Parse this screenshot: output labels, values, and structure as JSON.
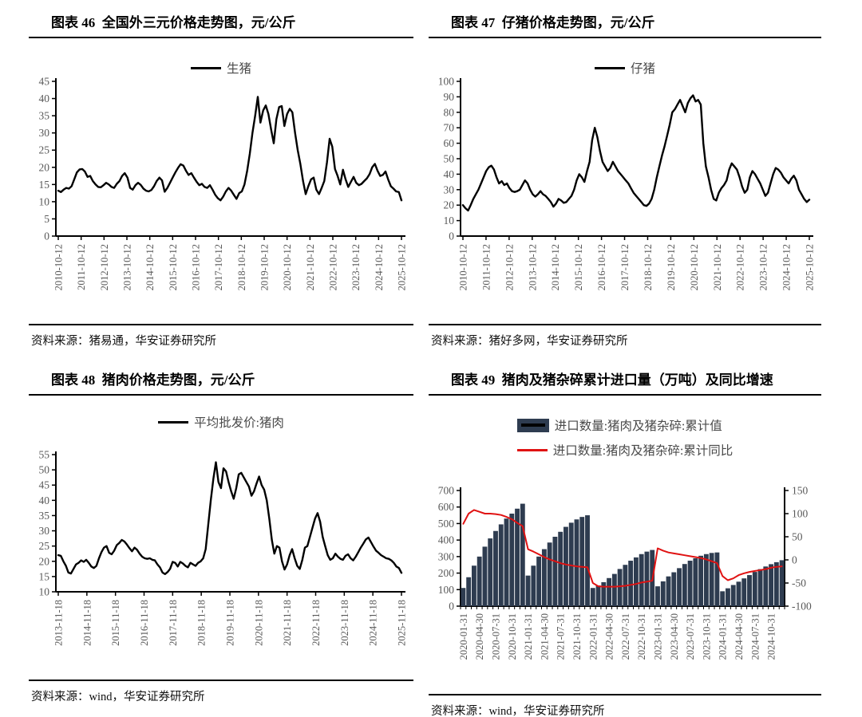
{
  "chart_data": [
    {
      "id": "fig46",
      "type": "line",
      "title": "图表 46  全国外三元价格走势图，元/公斤",
      "source": "资料来源：猪易通，华安证券研究所",
      "ylim": [
        0,
        45
      ],
      "ytick_step": 5,
      "axis_label_color": "#595959",
      "x_tick_labels": [
        "2010-10-12",
        "2011-10-12",
        "2012-10-12",
        "2013-10-12",
        "2014-10-12",
        "2015-10-12",
        "2016-10-12",
        "2017-10-12",
        "2018-10-12",
        "2019-10-12",
        "2020-10-12",
        "2021-10-12",
        "2022-10-12",
        "2023-10-12",
        "2024-10-12",
        "2025-10-12"
      ],
      "legend_items": [
        {
          "label": "生猪",
          "type": "line",
          "color": "#000000"
        }
      ],
      "series": [
        {
          "name": "生猪",
          "color": "#000000",
          "values": [
            13.2,
            12.8,
            13.5,
            14,
            13.8,
            14.5,
            16.5,
            18.5,
            19.4,
            19.5,
            18.8,
            17.2,
            17.5,
            16,
            15,
            14.3,
            14.2,
            14.8,
            15.5,
            15,
            14.3,
            14,
            15.2,
            16,
            17.5,
            18.3,
            17,
            14,
            13.5,
            14.8,
            15.5,
            14.9,
            13.8,
            13.2,
            13,
            13.4,
            14.5,
            16,
            17,
            16.2,
            12.9,
            14,
            15.5,
            17,
            18.5,
            19.8,
            20.9,
            20.5,
            19,
            17.8,
            18.3,
            17,
            15.8,
            14.8,
            15.2,
            14.3,
            14,
            14.8,
            13.5,
            12,
            11,
            10.4,
            11.5,
            13,
            14,
            13.2,
            12,
            10.8,
            12.5,
            13,
            15,
            19,
            24,
            30,
            35,
            40.5,
            33,
            36.5,
            38,
            35.5,
            31,
            27,
            34,
            37.5,
            37.8,
            32,
            35.5,
            37,
            36,
            30,
            25,
            21,
            16,
            12.2,
            14.5,
            16.5,
            17,
            13.5,
            12.2,
            14,
            16,
            21.5,
            28.3,
            26,
            19.5,
            17.5,
            15,
            19.3,
            16.5,
            14.3,
            15.8,
            17.2,
            15.5,
            14.8,
            15.2,
            16,
            16.8,
            18,
            20,
            21,
            19,
            17.5,
            17.8,
            18.8,
            16.5,
            14.5,
            13.8,
            13,
            12.8,
            10.4
          ]
        }
      ]
    },
    {
      "id": "fig47",
      "type": "line",
      "title": "图表 47  仔猪价格走势图，元/公斤",
      "source": "资料来源：猪好多网，华安证券研究所",
      "ylim": [
        0,
        100
      ],
      "ytick_step": 10,
      "axis_label_color": "#595959",
      "x_tick_labels": [
        "2010-10-12",
        "2011-10-12",
        "2012-10-12",
        "2013-10-12",
        "2014-10-12",
        "2015-10-12",
        "2016-10-12",
        "2017-10-12",
        "2018-10-12",
        "2019-10-12",
        "2020-10-12",
        "2021-10-12",
        "2022-10-12",
        "2023-10-12",
        "2024-10-12",
        "2025-10-12"
      ],
      "legend_items": [
        {
          "label": "仔猪",
          "type": "line",
          "color": "#000000"
        }
      ],
      "series": [
        {
          "name": "仔猪",
          "color": "#000000",
          "values": [
            20,
            18,
            16.5,
            20,
            24,
            27,
            30,
            34,
            38,
            42,
            44.5,
            45.5,
            43,
            38,
            34,
            35.5,
            33,
            34,
            31,
            29,
            28.5,
            29,
            30,
            33,
            36,
            34,
            30,
            27,
            25.5,
            27,
            29,
            27,
            26,
            24,
            22,
            19,
            21,
            24,
            23,
            21.5,
            22,
            24,
            26,
            30,
            36,
            40,
            38,
            35,
            42,
            48,
            62,
            70,
            64,
            55,
            48,
            45,
            42,
            44,
            48,
            45,
            42,
            40,
            38,
            36,
            34,
            31,
            28,
            26,
            24,
            22,
            20,
            19.5,
            21,
            24,
            30,
            38,
            45,
            52,
            58,
            65,
            72,
            80,
            82,
            85,
            88,
            84,
            80,
            86,
            89,
            91,
            87,
            88,
            85,
            60,
            45,
            38,
            30,
            24,
            23,
            28,
            31,
            33,
            36,
            43,
            47,
            45,
            43,
            38,
            32,
            28,
            30,
            38,
            42,
            40,
            37,
            34,
            30,
            26,
            28,
            34,
            40,
            44,
            43,
            41,
            38,
            36,
            34,
            37,
            39,
            36,
            30,
            27,
            24,
            22,
            23.5
          ]
        }
      ]
    },
    {
      "id": "fig48",
      "type": "line",
      "title": "图表 48  猪肉价格走势图，元/公斤",
      "source": "资料来源：wind，华安证券研究所",
      "ylim": [
        10,
        55
      ],
      "ytick_step": 5,
      "axis_label_color": "#595959",
      "x_tick_labels": [
        "2013-11-18",
        "2014-11-18",
        "2015-11-18",
        "2016-11-18",
        "2017-11-18",
        "2018-11-18",
        "2019-11-18",
        "2020-11-18",
        "2021-11-18",
        "2022-11-18",
        "2023-11-18",
        "2024-11-18",
        "2025-11-18"
      ],
      "legend_items": [
        {
          "label": "平均批发价:猪肉",
          "type": "line",
          "color": "#000000"
        }
      ],
      "series": [
        {
          "name": "平均批发价:猪肉",
          "color": "#000000",
          "values": [
            22,
            21.8,
            20,
            18.5,
            16.3,
            16,
            17.5,
            19,
            19.5,
            20.3,
            19.8,
            20.5,
            19.5,
            18.3,
            17.8,
            18.5,
            21,
            23,
            24.5,
            25,
            22.8,
            22.3,
            23.5,
            25.3,
            26,
            27,
            26.5,
            25.5,
            24.3,
            23.3,
            24.5,
            23.8,
            22.5,
            21.5,
            21,
            20.8,
            21,
            20.5,
            20.3,
            19,
            18,
            16.3,
            15.8,
            16.5,
            17.5,
            19.8,
            19.5,
            18.3,
            19.8,
            19.3,
            18.5,
            18,
            19.5,
            19,
            18.5,
            19.5,
            20,
            21,
            24,
            32,
            40,
            47,
            52.5,
            46,
            44,
            50.5,
            49.5,
            46,
            43,
            40.5,
            44,
            48.5,
            49,
            47.5,
            46,
            44.5,
            41.5,
            43,
            45.5,
            47.8,
            45,
            43.5,
            40,
            34,
            27,
            22.5,
            25,
            24.5,
            20,
            17.3,
            19,
            22,
            24,
            21,
            18.5,
            17.5,
            20.5,
            24.5,
            25,
            28,
            31,
            34,
            35.8,
            33,
            28,
            25,
            22,
            20.5,
            21,
            22.5,
            21.5,
            20.8,
            20.5,
            21.8,
            22.3,
            21,
            20.3,
            21.5,
            23,
            24.5,
            25.8,
            27.2,
            27.8,
            26.3,
            24.8,
            23.5,
            22.8,
            22,
            21.5,
            21,
            20.8,
            20.3,
            19.5,
            18.3,
            17.8,
            16.2
          ]
        }
      ]
    },
    {
      "id": "fig49",
      "type": "bar+line",
      "title": "图表 49  猪肉及猪杂碎累计进口量（万吨）及同比增速",
      "source": "资料来源：wind，华安证券研究所",
      "ylim_left": [
        0,
        700
      ],
      "ytick_step_left": 100,
      "ylim_right": [
        -100,
        150
      ],
      "ytick_step_right": 50,
      "axis_label_color": "#595959",
      "x_label_every": 3,
      "x_tick_labels": [
        "2020-01-31",
        "2020-04-30",
        "2020-07-31",
        "2020-10-31",
        "2021-01-31",
        "2021-04-30",
        "2021-07-31",
        "2021-10-31",
        "2022-01-31",
        "2022-04-30",
        "2022-07-31",
        "2022-10-31",
        "2023-01-31",
        "2023-04-30",
        "2023-07-31",
        "2023-10-31",
        "2024-01-31",
        "2024-04-30",
        "2024-07-31",
        "2024-10-31"
      ],
      "legend_items": [
        {
          "label": "进口数量:猪肉及猪杂碎:累计值",
          "type": "bar",
          "color": "#2e3c50"
        },
        {
          "label": "进口数量:猪肉及猪杂碎:累计同比",
          "type": "line",
          "color": "#e01212"
        }
      ],
      "bars": {
        "name": "进口数量:猪肉及猪杂碎:累计值",
        "color": "#2e3c50",
        "values": [
          110,
          175,
          245,
          300,
          360,
          410,
          455,
          495,
          530,
          560,
          590,
          620,
          185,
          245,
          300,
          345,
          385,
          420,
          450,
          480,
          505,
          525,
          540,
          550,
          110,
          125,
          145,
          170,
          195,
          225,
          250,
          275,
          295,
          315,
          330,
          340,
          120,
          150,
          180,
          205,
          230,
          255,
          275,
          290,
          305,
          315,
          322,
          325,
          90,
          108,
          128,
          148,
          168,
          188,
          207,
          224,
          240,
          254,
          266,
          278
        ]
      },
      "line": {
        "name": "进口数量:猪肉及猪杂碎:累计同比",
        "color": "#e01212",
        "values": [
          78,
          100,
          108,
          104,
          100,
          100,
          99,
          97,
          93,
          88,
          80,
          73,
          23,
          18,
          12,
          6,
          1,
          -3,
          -7,
          -10,
          -12,
          -14,
          -15,
          -16,
          -50,
          -57,
          -58,
          -58,
          -58,
          -57,
          -56,
          -54,
          -52,
          -49,
          -47,
          -45,
          25,
          20,
          16,
          14,
          12,
          10,
          8,
          6,
          4,
          1,
          -3,
          -7,
          -35,
          -44,
          -40,
          -33,
          -29,
          -26,
          -24,
          -22,
          -20,
          -17,
          -15,
          -14
        ]
      }
    }
  ]
}
